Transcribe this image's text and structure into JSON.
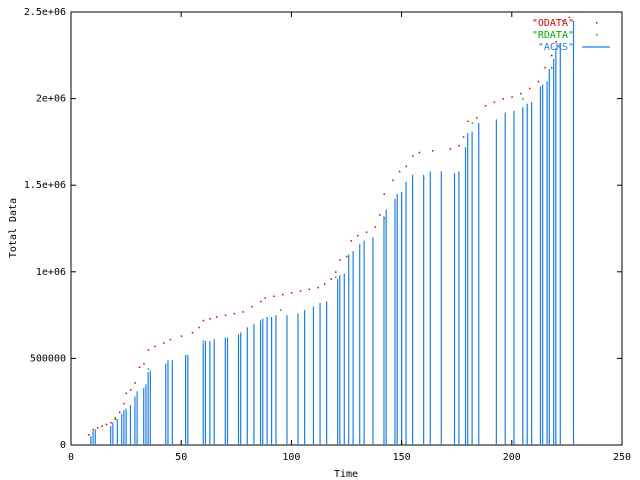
{
  "chart_data": {
    "type": "scatter",
    "xlabel": "Time",
    "ylabel": "Total Data",
    "xlim": [
      0,
      250
    ],
    "ylim": [
      0,
      2500000
    ],
    "x_ticks": [
      "0",
      "50",
      "100",
      "150",
      "200",
      "250"
    ],
    "y_ticks": [
      "0",
      "500000",
      "1e+06",
      "1.5e+06",
      "2e+06",
      "2.5e+06"
    ],
    "legend_position": "top-right",
    "grid": false,
    "series": [
      {
        "name": "\"ODATA\"",
        "style": "points",
        "color": "#cc0000",
        "points": [
          [
            8,
            60000
          ],
          [
            10,
            90000
          ],
          [
            12,
            100000
          ],
          [
            14,
            110000
          ],
          [
            16,
            120000
          ],
          [
            18,
            130000
          ],
          [
            20,
            150000
          ],
          [
            22,
            190000
          ],
          [
            24,
            240000
          ],
          [
            25,
            300000
          ],
          [
            27,
            320000
          ],
          [
            29,
            360000
          ],
          [
            31,
            450000
          ],
          [
            33,
            470000
          ],
          [
            35,
            550000
          ],
          [
            38,
            570000
          ],
          [
            42,
            590000
          ],
          [
            45,
            610000
          ],
          [
            50,
            630000
          ],
          [
            55,
            650000
          ],
          [
            58,
            680000
          ],
          [
            60,
            720000
          ],
          [
            63,
            730000
          ],
          [
            66,
            740000
          ],
          [
            70,
            750000
          ],
          [
            74,
            760000
          ],
          [
            78,
            770000
          ],
          [
            82,
            800000
          ],
          [
            86,
            830000
          ],
          [
            88,
            850000
          ],
          [
            92,
            860000
          ],
          [
            96,
            870000
          ],
          [
            100,
            880000
          ],
          [
            104,
            890000
          ],
          [
            108,
            900000
          ],
          [
            112,
            910000
          ],
          [
            115,
            930000
          ],
          [
            118,
            960000
          ],
          [
            120,
            1000000
          ],
          [
            122,
            1070000
          ],
          [
            125,
            1090000
          ],
          [
            127,
            1180000
          ],
          [
            130,
            1210000
          ],
          [
            134,
            1230000
          ],
          [
            138,
            1260000
          ],
          [
            140,
            1330000
          ],
          [
            142,
            1450000
          ],
          [
            146,
            1530000
          ],
          [
            149,
            1580000
          ],
          [
            152,
            1610000
          ],
          [
            155,
            1670000
          ],
          [
            158,
            1690000
          ],
          [
            164,
            1700000
          ],
          [
            172,
            1710000
          ],
          [
            176,
            1730000
          ],
          [
            178,
            1780000
          ],
          [
            180,
            1870000
          ],
          [
            184,
            1890000
          ],
          [
            188,
            1960000
          ],
          [
            192,
            1980000
          ],
          [
            196,
            2000000
          ],
          [
            200,
            2010000
          ],
          [
            204,
            2030000
          ],
          [
            208,
            2060000
          ],
          [
            212,
            2100000
          ],
          [
            215,
            2180000
          ],
          [
            218,
            2250000
          ],
          [
            220,
            2330000
          ],
          [
            223,
            2450000
          ],
          [
            226,
            2470000
          ],
          [
            229,
            2500000
          ]
        ]
      },
      {
        "name": "\"RDATA\"",
        "style": "points",
        "color": "#00aa00",
        "points": [
          [
            20,
            160000
          ],
          [
            35,
            440000
          ],
          [
            60,
            600000
          ],
          [
            95,
            780000
          ],
          [
            120,
            970000
          ],
          [
            142,
            1310000
          ],
          [
            160,
            1540000
          ],
          [
            182,
            1860000
          ],
          [
            205,
            2000000
          ],
          [
            218,
            2180000
          ]
        ]
      },
      {
        "name": "\"ACKS\"",
        "style": "impulses",
        "color": "#1e7fe0",
        "points": [
          [
            9,
            50000
          ],
          [
            10,
            80000
          ],
          [
            11,
            90000
          ],
          [
            18,
            110000
          ],
          [
            19,
            130000
          ],
          [
            21,
            150000
          ],
          [
            23,
            180000
          ],
          [
            24,
            200000
          ],
          [
            25,
            210000
          ],
          [
            27,
            230000
          ],
          [
            29,
            280000
          ],
          [
            30,
            310000
          ],
          [
            33,
            330000
          ],
          [
            34,
            350000
          ],
          [
            35,
            420000
          ],
          [
            36,
            430000
          ],
          [
            43,
            470000
          ],
          [
            44,
            490000
          ],
          [
            46,
            490000
          ],
          [
            52,
            520000
          ],
          [
            53,
            520000
          ],
          [
            60,
            590000
          ],
          [
            61,
            600000
          ],
          [
            63,
            600000
          ],
          [
            65,
            610000
          ],
          [
            70,
            620000
          ],
          [
            71,
            620000
          ],
          [
            76,
            640000
          ],
          [
            77,
            650000
          ],
          [
            80,
            680000
          ],
          [
            83,
            700000
          ],
          [
            86,
            720000
          ],
          [
            87,
            730000
          ],
          [
            89,
            740000
          ],
          [
            91,
            740000
          ],
          [
            93,
            750000
          ],
          [
            98,
            750000
          ],
          [
            103,
            760000
          ],
          [
            106,
            780000
          ],
          [
            110,
            800000
          ],
          [
            113,
            820000
          ],
          [
            116,
            830000
          ],
          [
            121,
            960000
          ],
          [
            122,
            980000
          ],
          [
            124,
            990000
          ],
          [
            126,
            1100000
          ],
          [
            128,
            1120000
          ],
          [
            131,
            1160000
          ],
          [
            133,
            1180000
          ],
          [
            137,
            1200000
          ],
          [
            142,
            1320000
          ],
          [
            143,
            1360000
          ],
          [
            147,
            1420000
          ],
          [
            148,
            1450000
          ],
          [
            150,
            1460000
          ],
          [
            152,
            1520000
          ],
          [
            155,
            1560000
          ],
          [
            160,
            1560000
          ],
          [
            163,
            1580000
          ],
          [
            168,
            1580000
          ],
          [
            174,
            1570000
          ],
          [
            176,
            1580000
          ],
          [
            179,
            1720000
          ],
          [
            180,
            1800000
          ],
          [
            182,
            1810000
          ],
          [
            185,
            1860000
          ],
          [
            193,
            1880000
          ],
          [
            197,
            1920000
          ],
          [
            201,
            1930000
          ],
          [
            205,
            1950000
          ],
          [
            207,
            1970000
          ],
          [
            209,
            1980000
          ],
          [
            213,
            2070000
          ],
          [
            214,
            2080000
          ],
          [
            216,
            2100000
          ],
          [
            217,
            2170000
          ],
          [
            219,
            2230000
          ],
          [
            220,
            2290000
          ],
          [
            222,
            2320000
          ],
          [
            228,
            2450000
          ]
        ]
      }
    ]
  }
}
